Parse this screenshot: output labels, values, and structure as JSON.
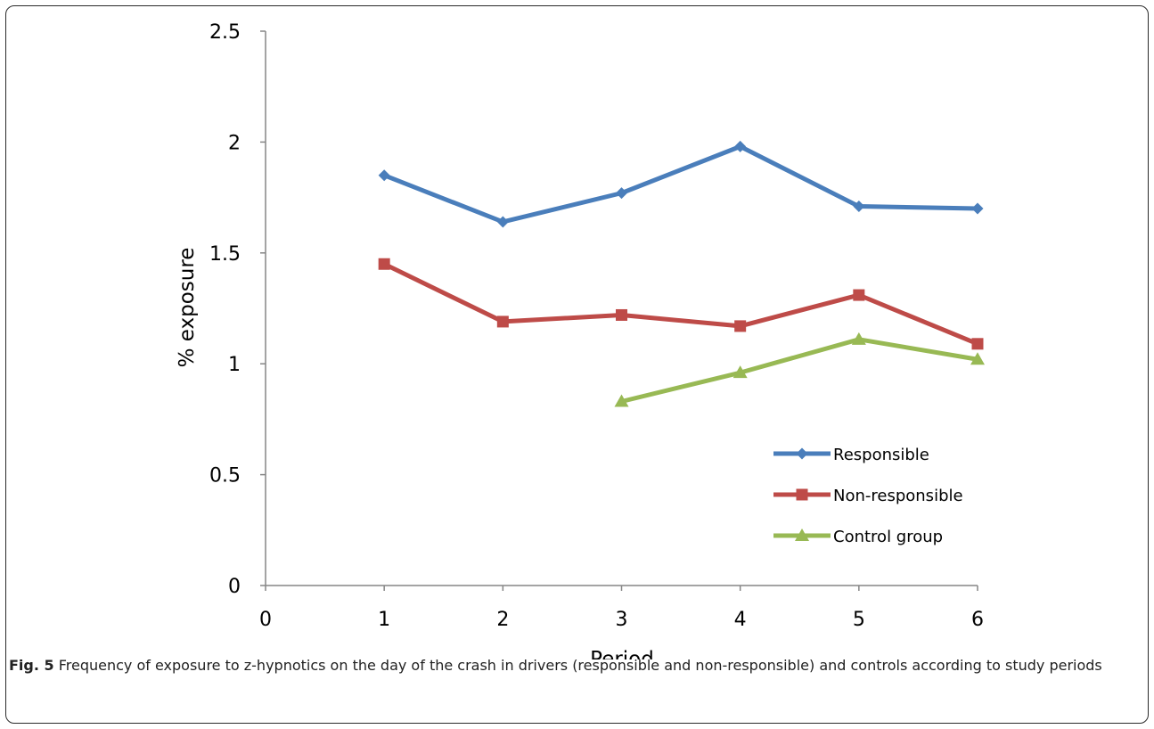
{
  "chart_data": {
    "type": "line",
    "xlabel": "Period",
    "ylabel": "% exposure",
    "xlim": [
      0,
      6
    ],
    "ylim": [
      0,
      2.5
    ],
    "xticks": [
      "0",
      "1",
      "2",
      "3",
      "4",
      "5",
      "6"
    ],
    "yticks": [
      "0",
      "0.5",
      "1",
      "1.5",
      "2",
      "2.5"
    ],
    "grid": false,
    "legend_position": "lower-right",
    "series": [
      {
        "name": "Responsible",
        "color": "#4a7ebb",
        "marker": "diamond",
        "x": [
          1,
          2,
          3,
          4,
          5,
          6
        ],
        "y": [
          1.85,
          1.64,
          1.77,
          1.98,
          1.71,
          1.7
        ]
      },
      {
        "name": "Non-responsible",
        "color": "#be4b48",
        "marker": "square",
        "x": [
          1,
          2,
          3,
          4,
          5,
          6
        ],
        "y": [
          1.45,
          1.19,
          1.22,
          1.17,
          1.31,
          1.09
        ]
      },
      {
        "name": "Control group",
        "color": "#98b954",
        "marker": "triangle",
        "x": [
          3,
          4,
          5,
          6
        ],
        "y": [
          0.83,
          0.96,
          1.11,
          1.02
        ]
      }
    ]
  },
  "caption": {
    "label": "Fig. 5",
    "text": " Frequency of exposure to z-hypnotics on the day of the crash in drivers (responsible and non-responsible) and controls according to study periods"
  }
}
